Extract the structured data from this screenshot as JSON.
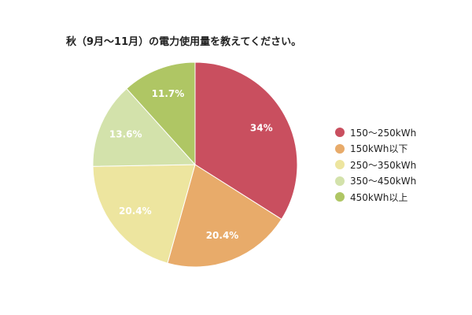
{
  "chart_data": {
    "type": "pie",
    "title": "秋（9月〜11月）の電力使用量を教えてください。",
    "categories": [
      "150〜250kWh",
      "150kWh以下",
      "250〜350kWh",
      "350〜450kWh",
      "450kWh以上"
    ],
    "values": [
      34,
      20.4,
      20.4,
      13.6,
      11.7
    ],
    "data_labels": [
      "34%",
      "20.4%",
      "20.4%",
      "13.6%",
      "11.7%"
    ],
    "colors": [
      "#c94f5f",
      "#e8ab6a",
      "#ede59f",
      "#d3e2ab",
      "#afc664"
    ],
    "legend_position": "right"
  }
}
